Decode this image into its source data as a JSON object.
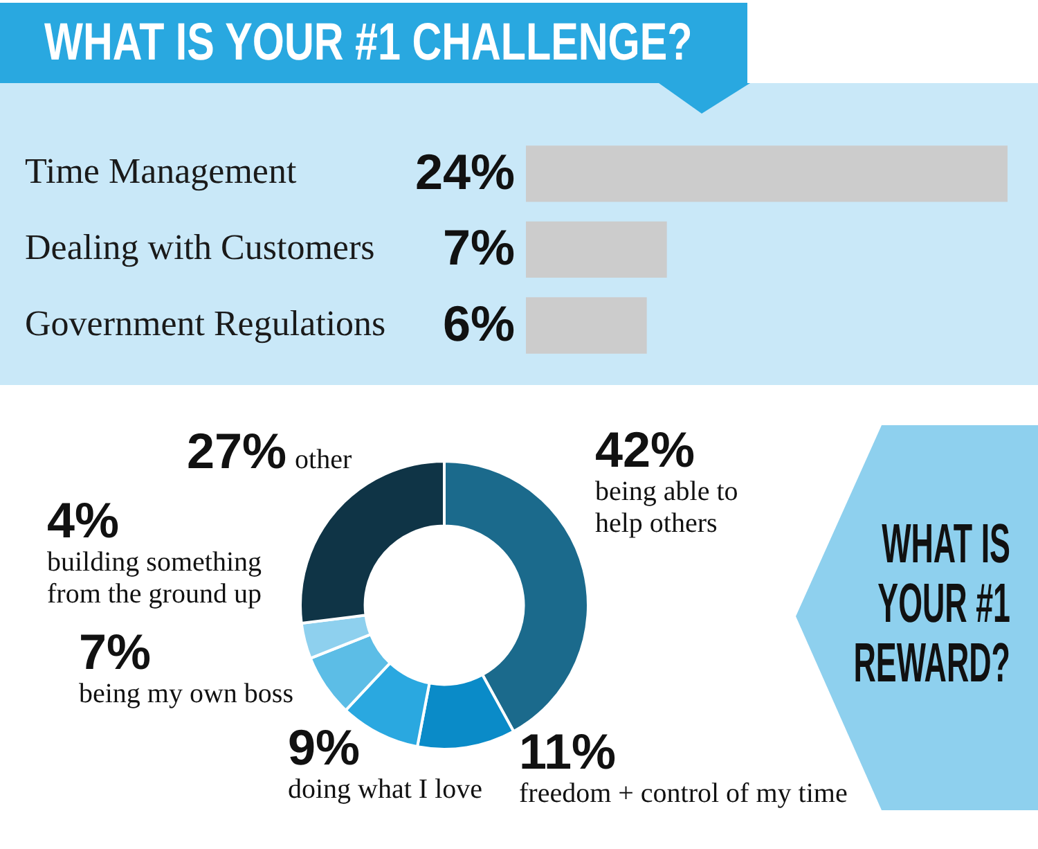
{
  "chart_data": [
    {
      "type": "bar",
      "orientation": "horizontal",
      "title": "WHAT IS YOUR #1 CHALLENGE?",
      "categories": [
        "Time Management",
        "Dealing with Customers",
        "Government Regulations"
      ],
      "values": [
        24,
        7,
        6
      ],
      "value_labels": [
        "24%",
        "7%",
        "6%"
      ],
      "color": "#cccccc",
      "tick_labels": "y"
    },
    {
      "type": "donut",
      "title": "WHAT IS YOUR #1 REWARD?",
      "categories": [
        "being able to help others",
        "freedom + control of my time",
        "doing what I love",
        "being my own boss",
        "building something from the ground up",
        "other"
      ],
      "values": [
        42,
        11,
        9,
        7,
        4,
        27
      ],
      "value_labels": [
        "42%",
        "11%",
        "9%",
        "7%",
        "4%",
        "27%"
      ],
      "colors": [
        "#1b6a8c",
        "#0a8bc8",
        "#2aa8e0",
        "#5cbde6",
        "#8ed0ee",
        "#0f3446"
      ]
    }
  ]
}
